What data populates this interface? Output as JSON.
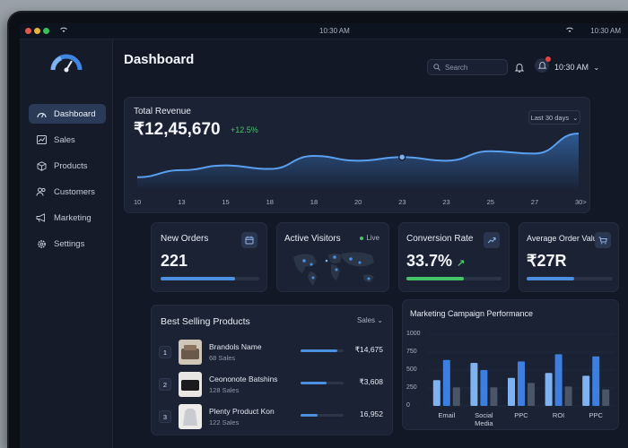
{
  "titlebar": {
    "clock": "10:30 AM",
    "right_time": "10:30 AM"
  },
  "colors": {
    "accent": "#4a8fe0",
    "positive": "#46c46a",
    "background": "#121826",
    "card": "#1a2233"
  },
  "sidebar": {
    "items": [
      {
        "label": "Dashboard",
        "icon": "gauge-icon",
        "active": true
      },
      {
        "label": "Sales",
        "icon": "chart-icon"
      },
      {
        "label": "Products",
        "icon": "box-icon"
      },
      {
        "label": "Customers",
        "icon": "users-icon"
      },
      {
        "label": "Marketing",
        "icon": "megaphone-icon"
      },
      {
        "label": "Settings",
        "icon": "gear-icon"
      }
    ]
  },
  "header": {
    "title": "Dashboard",
    "search_placeholder": "Search",
    "time": "10:30 AM"
  },
  "revenue": {
    "title": "Total Revenue",
    "value": "₹12,45,670",
    "change": "+12.5%",
    "range": "Last 30 days"
  },
  "stats": {
    "orders": {
      "title": "New Orders",
      "value": "221",
      "progress": 0.75
    },
    "visitors": {
      "title": "Active Visitors",
      "live": "Live"
    },
    "conversion": {
      "title": "Conversion Rate",
      "value": "33.7%",
      "progress": 0.6
    },
    "aov": {
      "title": "Average Order Value",
      "value": "₹27R",
      "progress": 0.55
    }
  },
  "best_selling": {
    "title": "Best Selling Products",
    "filter": "Sales",
    "rows": [
      {
        "rank": "1",
        "name": "Brandols Name",
        "sales": "68 Sales",
        "value": "₹14,675",
        "progress": 0.85
      },
      {
        "rank": "2",
        "name": "Ceononote Batshins",
        "sales": "128 Sales",
        "value": "₹3,608",
        "progress": 0.6
      },
      {
        "rank": "3",
        "name": "Plenty Product Kon",
        "sales": "122 Sales",
        "value": "16,952",
        "progress": 0.4
      }
    ]
  },
  "marketing": {
    "title": "Marketing Campaign Performance"
  },
  "chart_data": [
    {
      "type": "area",
      "x": [
        "10",
        "13",
        "15",
        "18",
        "18",
        "20",
        "23",
        "23",
        "25",
        "27",
        "30>"
      ],
      "values": [
        10,
        16,
        20,
        17,
        28,
        24,
        27,
        24,
        32,
        30,
        47
      ],
      "xlabel": "",
      "ylabel": "",
      "grid": false
    },
    {
      "type": "bar",
      "title": "Marketing Campaign Performance",
      "categories": [
        "Email",
        "Social Media",
        "PPC",
        "ROI",
        "PPC"
      ],
      "series": [
        {
          "values": [
            360,
            600,
            390,
            460,
            420
          ]
        },
        {
          "values": [
            640,
            500,
            620,
            720,
            690
          ]
        },
        {
          "values": [
            260,
            260,
            320,
            270,
            230
          ]
        }
      ],
      "yticks": [
        "0",
        "250",
        "500",
        "750",
        "1000"
      ],
      "ylim": [
        0,
        1000
      ],
      "series_colors": [
        "#7fb2f0",
        "#3d7fe0",
        "#4a5568"
      ]
    }
  ]
}
